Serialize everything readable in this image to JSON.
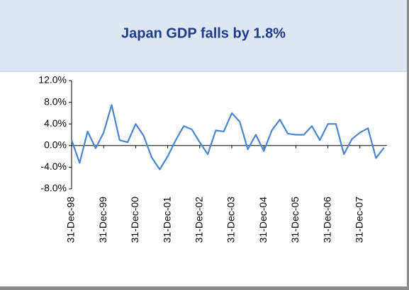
{
  "chart_data": {
    "type": "line",
    "title": "Japan GDP falls by 1.8%",
    "categories": [
      "31-Dec-98",
      null,
      null,
      null,
      "31-Dec-99",
      null,
      null,
      null,
      "31-Dec-00",
      null,
      null,
      null,
      "31-Dec-01",
      null,
      null,
      null,
      "31-Dec-02",
      null,
      null,
      null,
      "31-Dec-03",
      null,
      null,
      null,
      "31-Dec-04",
      null,
      null,
      null,
      "31-Dec-05",
      null,
      null,
      null,
      "31-Dec-06",
      null,
      null,
      null,
      "31-Dec-07",
      null,
      null,
      null
    ],
    "series": [
      {
        "name": "Japan GDP",
        "color": "#4a86cf",
        "values": [
          1.0,
          -3.2,
          2.6,
          -0.5,
          2.4,
          7.5,
          1.0,
          0.6,
          4.0,
          1.8,
          -2.2,
          -4.4,
          -2.0,
          1.0,
          3.6,
          3.0,
          0.6,
          -1.6,
          2.8,
          2.6,
          6.0,
          4.4,
          -0.7,
          2.0,
          -1.0,
          2.8,
          4.8,
          2.2,
          2.0,
          2.0,
          3.6,
          1.0,
          4.0,
          4.0,
          -1.6,
          1.2,
          2.4,
          3.2,
          -2.3,
          -0.4
        ]
      }
    ],
    "ylim": [
      -8,
      12
    ],
    "yticks": [
      {
        "value": -8,
        "label": "-8.0%"
      },
      {
        "value": -4,
        "label": "-4.0%"
      },
      {
        "value": 0,
        "label": "0.0%"
      },
      {
        "value": 4,
        "label": "4.0%"
      },
      {
        "value": 8,
        "label": "8.0%"
      },
      {
        "value": 12,
        "label": "12.0%"
      }
    ]
  }
}
